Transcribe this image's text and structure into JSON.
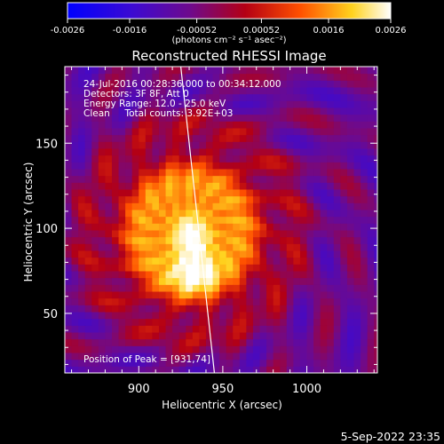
{
  "colorbar": {
    "tick_labels": [
      "-0.0026",
      "-0.0016",
      "-0.00052",
      "0.00052",
      "0.0016",
      "0.0026"
    ],
    "tick_values": [
      -0.0026,
      -0.0016,
      -0.00052,
      0.00052,
      0.0016,
      0.0026
    ],
    "range": [
      -0.0026,
      0.0026
    ],
    "unit_label": "(photons cm⁻² s⁻¹ asec⁻²)",
    "colormap": "blue-purple-red-yellow-white"
  },
  "chart_data": {
    "type": "heatmap",
    "title": "Reconstructed RHESSI Image",
    "xlabel": "Heliocentric X (arcsec)",
    "ylabel": "Heliocentric Y (arcsec)",
    "xlim": [
      856,
      1042
    ],
    "ylim": [
      15,
      195
    ],
    "x_ticks": [
      900,
      950,
      1000
    ],
    "y_ticks": [
      50,
      100,
      150
    ],
    "annotations": [
      "24-Jul-2016 00:28:36.000 to 00:34:12.000",
      "Detectors: 3F 8F, Att 0",
      "Energy Range: 12.0 - 25.0 keV",
      "Clean     Total counts: 3.92E+03"
    ],
    "peak_label": "Position of Peak = [931,74]",
    "peak": {
      "x": 931,
      "y": 74
    },
    "limb_line": {
      "x_top": 935,
      "x_bottom": 945
    },
    "colors": {
      "background": "#000000",
      "frame": "#ffffff",
      "limb": "#ffffff"
    }
  },
  "footer": {
    "timestamp": "5-Sep-2022 23:35"
  }
}
